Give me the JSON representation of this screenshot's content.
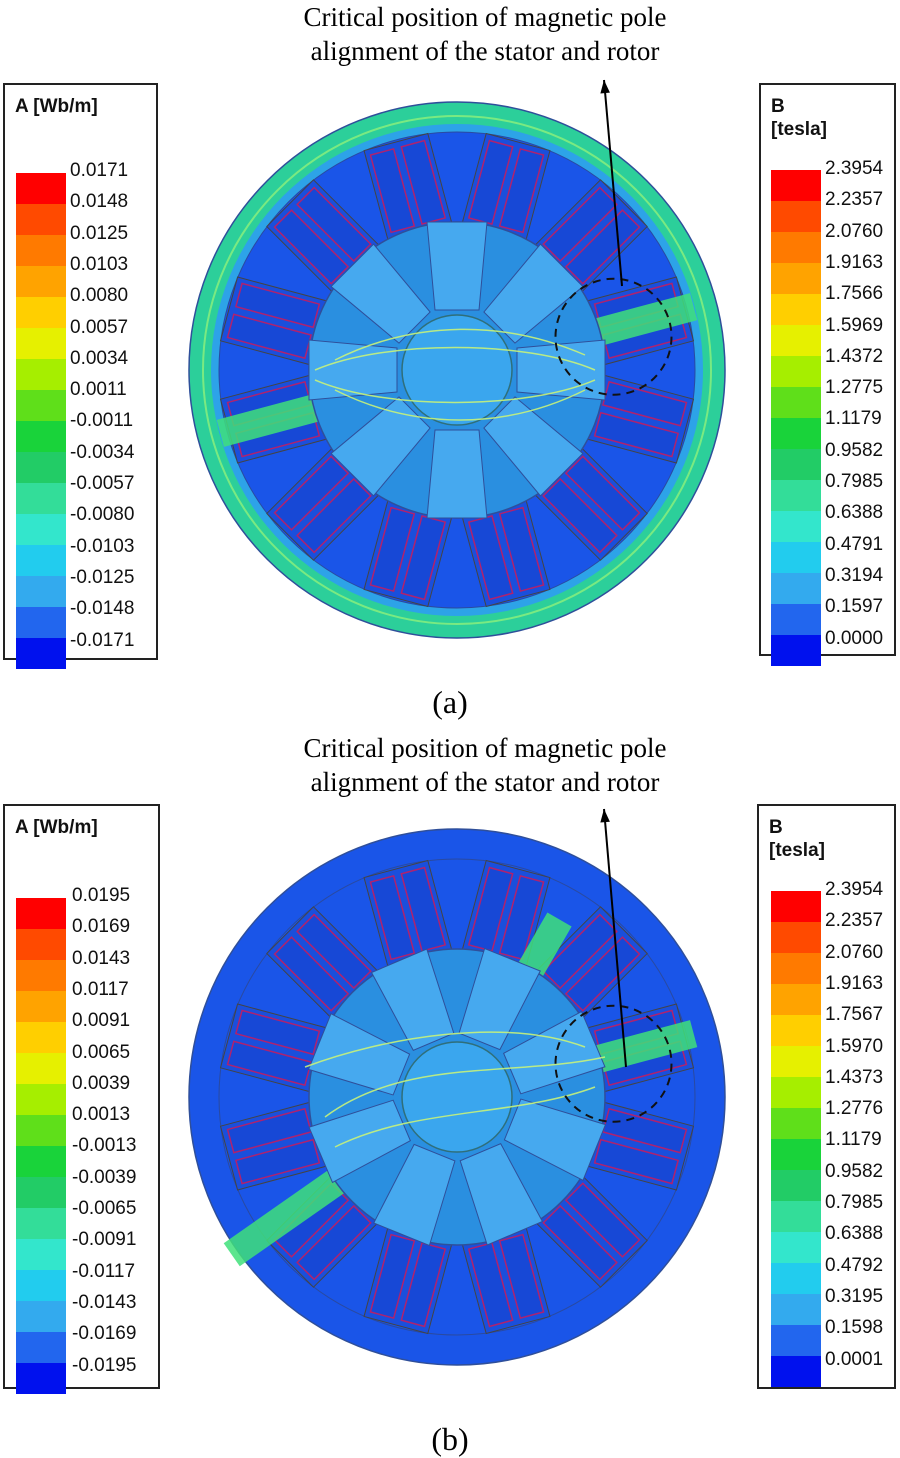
{
  "panels": [
    {
      "id": "a",
      "annotation": [
        "Critical position of magnetic pole",
        "alignment of the stator and rotor"
      ],
      "caption": "(a)",
      "legend_A": {
        "title": "A [Wb/m]",
        "values": [
          "0.0171",
          "0.0148",
          "0.0125",
          "0.0103",
          "0.0080",
          "0.0057",
          "0.0034",
          "0.0011",
          "-0.0011",
          "-0.0034",
          "-0.0057",
          "-0.0080",
          "-0.0103",
          "-0.0125",
          "-0.0148",
          "-0.0171"
        ]
      },
      "legend_B": {
        "title": [
          "B",
          "[tesla]"
        ],
        "values": [
          "2.3954",
          "2.2357",
          "2.0760",
          "1.9163",
          "1.7566",
          "1.5969",
          "1.4372",
          "1.2775",
          "1.1179",
          "0.9582",
          "0.7985",
          "0.6388",
          "0.4791",
          "0.3194",
          "0.1597",
          "0.0000"
        ]
      }
    },
    {
      "id": "b",
      "annotation": [
        "Critical position of magnetic pole",
        "alignment of the stator and rotor"
      ],
      "caption": "(b)",
      "legend_A": {
        "title": "A [Wb/m]",
        "values": [
          "0.0195",
          "0.0169",
          "0.0143",
          "0.0117",
          "0.0091",
          "0.0065",
          "0.0039",
          "0.0013",
          "-0.0013",
          "-0.0039",
          "-0.0065",
          "-0.0091",
          "-0.0117",
          "-0.0143",
          "-0.0169",
          "-0.0195"
        ]
      },
      "legend_B": {
        "title": [
          "B",
          "[tesla]"
        ],
        "values": [
          "2.3954",
          "2.2357",
          "2.0760",
          "1.9163",
          "1.7567",
          "1.5970",
          "1.4373",
          "1.2776",
          "1.1179",
          "0.9582",
          "0.7985",
          "0.6388",
          "0.4792",
          "0.3195",
          "0.1598",
          "0.0001"
        ]
      }
    }
  ],
  "colorscale": [
    "#ff0000",
    "#ff4a00",
    "#ff7a00",
    "#ffa300",
    "#ffcf00",
    "#e6f000",
    "#a6ee00",
    "#5fdf1a",
    "#19d33a",
    "#22cc66",
    "#33dd99",
    "#33e6cc",
    "#22ccee",
    "#33aaee",
    "#2266ee",
    "#0011ee"
  ]
}
